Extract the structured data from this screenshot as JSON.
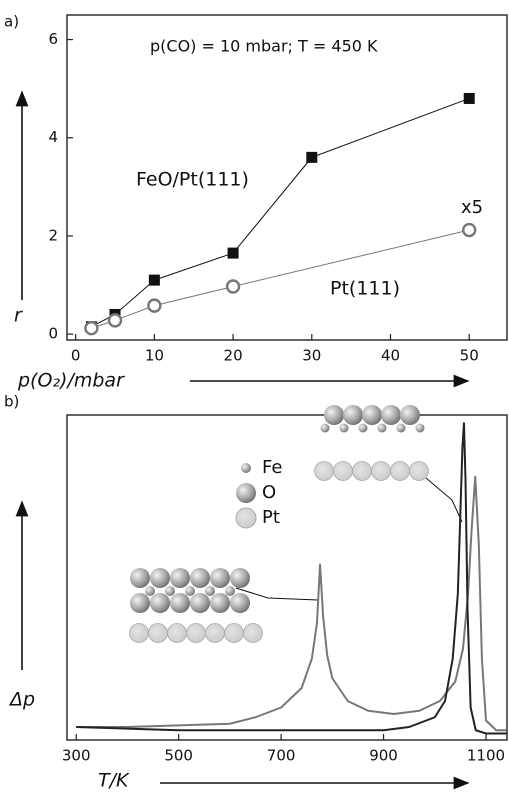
{
  "chart_data": [
    {
      "type": "line",
      "panel_label": "a)",
      "annotation": "p(CO) = 10 mbar; T = 450 K",
      "x_label": "p(O₂)/mbar",
      "y_label": "r",
      "xlim": [
        -1.1,
        54.8
      ],
      "ylim": [
        -0.12,
        6.5
      ],
      "xticks": [
        0,
        10,
        20,
        30,
        40,
        50
      ],
      "yticks": [
        0,
        2,
        4,
        6
      ],
      "series": [
        {
          "name": "FeO/Pt(111)",
          "color": "#111111",
          "marker": "square",
          "x": [
            2,
            5,
            10,
            20,
            30,
            50
          ],
          "values": [
            0.15,
            0.4,
            1.1,
            1.65,
            3.6,
            4.8
          ]
        },
        {
          "name": "Pt(111)",
          "color": "#777777",
          "marker": "circle",
          "scale_label": "x5",
          "x": [
            2,
            5,
            10,
            20,
            50
          ],
          "values": [
            0.12,
            0.28,
            0.58,
            0.97,
            2.12
          ]
        }
      ]
    },
    {
      "type": "line",
      "panel_label": "b)",
      "x_label": "T/K",
      "y_label": "Δp",
      "xlim": [
        282,
        1141
      ],
      "ylim": [
        0,
        1
      ],
      "xticks": [
        300,
        500,
        700,
        900,
        1100
      ],
      "structure_legend": [
        "Fe",
        "O",
        "Pt"
      ],
      "series": [
        {
          "color": "#777777",
          "x": [
            300,
            400,
            500,
            600,
            650,
            700,
            740,
            760,
            770,
            776,
            782,
            790,
            800,
            830,
            870,
            920,
            970,
            1010,
            1040,
            1055,
            1065,
            1072,
            1079,
            1086,
            1092,
            1100,
            1120,
            1140
          ],
          "values": [
            0.04,
            0.04,
            0.045,
            0.05,
            0.07,
            0.1,
            0.16,
            0.25,
            0.36,
            0.54,
            0.38,
            0.26,
            0.19,
            0.12,
            0.09,
            0.08,
            0.09,
            0.12,
            0.18,
            0.28,
            0.45,
            0.65,
            0.81,
            0.6,
            0.25,
            0.06,
            0.03,
            0.03
          ]
        },
        {
          "color": "#222222",
          "x": [
            300,
            500,
            700,
            900,
            950,
            1000,
            1020,
            1035,
            1045,
            1050,
            1054,
            1057,
            1060,
            1064,
            1070,
            1080,
            1100,
            1140
          ],
          "values": [
            0.04,
            0.03,
            0.03,
            0.03,
            0.04,
            0.07,
            0.12,
            0.25,
            0.45,
            0.7,
            0.9,
            0.975,
            0.8,
            0.4,
            0.1,
            0.03,
            0.02,
            0.02
          ]
        }
      ]
    }
  ]
}
